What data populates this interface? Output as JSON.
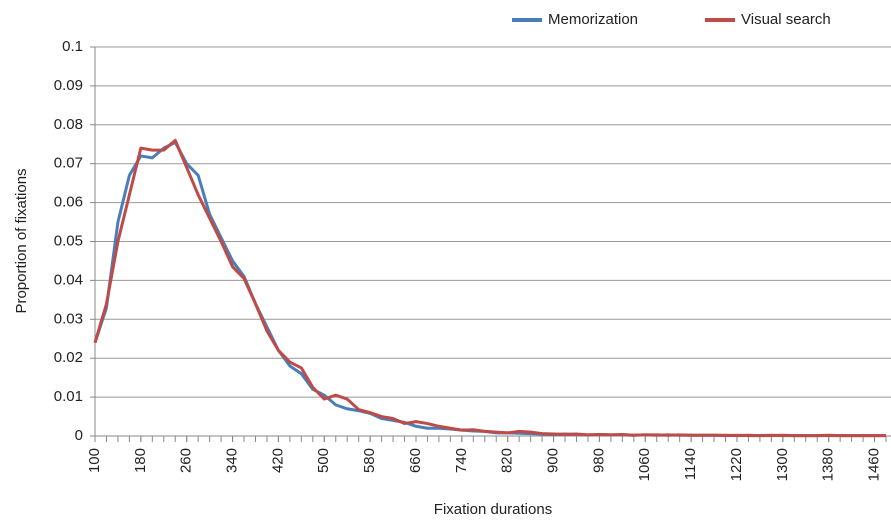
{
  "chart_data": {
    "type": "line",
    "xlabel": "Fixation durations",
    "ylabel": "Proportion of fixations",
    "x": [
      100,
      120,
      140,
      160,
      180,
      200,
      220,
      240,
      260,
      280,
      300,
      320,
      340,
      360,
      380,
      400,
      420,
      440,
      460,
      480,
      500,
      520,
      540,
      560,
      580,
      600,
      620,
      640,
      660,
      680,
      700,
      720,
      740,
      760,
      780,
      800,
      820,
      840,
      860,
      880,
      900,
      920,
      940,
      960,
      980,
      1000,
      1020,
      1040,
      1060,
      1080,
      1100,
      1120,
      1140,
      1160,
      1180,
      1200,
      1220,
      1240,
      1260,
      1280,
      1300,
      1320,
      1340,
      1360,
      1380,
      1400,
      1420,
      1440,
      1460,
      1480
    ],
    "series": [
      {
        "name": "Memorization",
        "color": "#4a7ebb",
        "values": [
          0.024,
          0.033,
          0.055,
          0.067,
          0.072,
          0.0715,
          0.074,
          0.0755,
          0.07,
          0.067,
          0.057,
          0.051,
          0.045,
          0.041,
          0.034,
          0.028,
          0.022,
          0.018,
          0.016,
          0.012,
          0.0105,
          0.008,
          0.007,
          0.0065,
          0.0058,
          0.0045,
          0.004,
          0.0035,
          0.0025,
          0.002,
          0.002,
          0.0018,
          0.0015,
          0.0013,
          0.0012,
          0.0008,
          0.0008,
          0.0007,
          0.0006,
          0.0005,
          0.0004,
          0.0005,
          0.0004,
          0.0003,
          0.0004,
          0.0003,
          0.0003,
          0.0002,
          0.0003,
          0.0002,
          0.0003,
          0.0002,
          0.0002,
          0.0002,
          0.0002,
          0.0001,
          0.0002,
          0.0001,
          0.0001,
          0.0002,
          0.0001,
          0.0001,
          0.0001,
          0.0001,
          0.0001,
          0.0001,
          0.0001,
          0.0001,
          0.0001,
          0.0001
        ]
      },
      {
        "name": "Visual search",
        "color": "#be4b48",
        "values": [
          0.024,
          0.034,
          0.05,
          0.062,
          0.074,
          0.0735,
          0.0735,
          0.076,
          0.069,
          0.062,
          0.056,
          0.05,
          0.0435,
          0.0405,
          0.034,
          0.027,
          0.022,
          0.019,
          0.0175,
          0.0125,
          0.0095,
          0.0105,
          0.0095,
          0.0068,
          0.006,
          0.005,
          0.0045,
          0.0032,
          0.0037,
          0.0032,
          0.0025,
          0.002,
          0.0015,
          0.0016,
          0.0012,
          0.001,
          0.0008,
          0.0012,
          0.001,
          0.0006,
          0.0005,
          0.0004,
          0.0005,
          0.0003,
          0.0004,
          0.0003,
          0.0004,
          0.0002,
          0.0003,
          0.0003,
          0.0002,
          0.0003,
          0.0002,
          0.0002,
          0.0002,
          0.0002,
          0.0001,
          0.0002,
          0.0001,
          0.0001,
          0.0002,
          0.0001,
          0.0001,
          0.0001,
          0.0002,
          0.0001,
          0.0001,
          0.0001,
          0.0001,
          0.0001
        ]
      }
    ],
    "xlim": [
      100,
      1480
    ],
    "xticks": [
      100,
      180,
      260,
      340,
      420,
      500,
      580,
      660,
      740,
      820,
      900,
      980,
      1060,
      1140,
      1220,
      1300,
      1380,
      1460
    ],
    "ylim": [
      0,
      0.1
    ],
    "yticks": [
      0,
      0.01,
      0.02,
      0.03,
      0.04,
      0.05,
      0.06,
      0.07,
      0.08,
      0.09,
      0.1
    ],
    "grid": true,
    "legend": "top-right"
  }
}
